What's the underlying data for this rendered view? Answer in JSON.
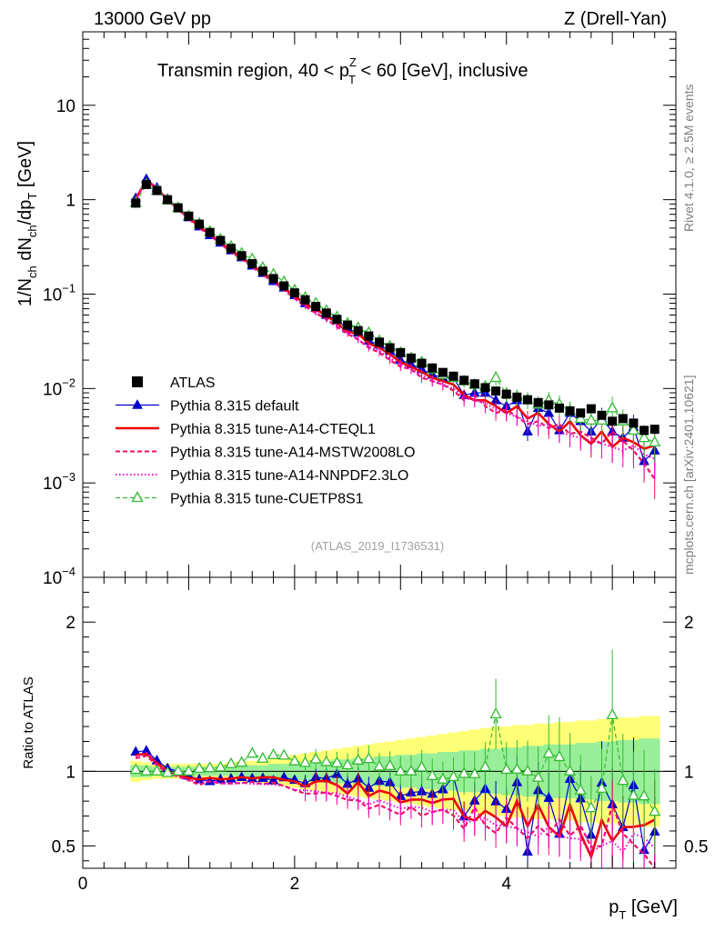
{
  "chart_data": [
    {
      "panel": "main",
      "type": "line",
      "yscale": "log",
      "header_left": "13000 GeV pp",
      "header_right": "Z (Drell-Yan)",
      "title": "Transmin region, 40 < pTZ < 60 [GeV], inclusive",
      "title_parts": {
        "a": "Transmin region, 40 < p",
        "sup": "Z",
        "sub": "T",
        "b": " < 60 [GeV], inclusive"
      },
      "ylabel": "1/Nch dNch/dpT [GeV]",
      "ylabel_parts": {
        "a": "1/N",
        "s1": "ch",
        "b": " dN",
        "s2": "ch",
        "c": "/dp",
        "s3": "T",
        "d": " [GeV]"
      },
      "ylim": [
        0.0001,
        60
      ],
      "yticks": [
        {
          "v": 10,
          "t": "10"
        },
        {
          "v": 1,
          "t": "1"
        },
        {
          "v": 0.1,
          "base": "10",
          "exp": "−1"
        },
        {
          "v": 0.01,
          "base": "10",
          "exp": "−2"
        },
        {
          "v": 0.001,
          "base": "10",
          "exp": "−3"
        },
        {
          "v": 0.0001,
          "base": "10",
          "exp": "−4"
        }
      ],
      "watermark": "(ATLAS_2019_I1736531)",
      "side_top": "Rivet 4.1.0, ≥ 2.5M events",
      "side_bottom": "mcplots.cern.ch [arXiv:2401.10621]",
      "legend": [
        {
          "label": "ATLAS",
          "color": "#000000",
          "style": "square"
        },
        {
          "label": "Pythia 8.315 default",
          "color": "#0000cc",
          "style": "tri-line"
        },
        {
          "label": "Pythia 8.315 tune-A14-CTEQL1",
          "color": "#ee0000",
          "style": "thick"
        },
        {
          "label": "Pythia 8.315 tune-A14-MSTW2008LO",
          "color": "#ee1166",
          "style": "dashed"
        },
        {
          "label": "Pythia 8.315 tune-A14-NNPDF2.3LO",
          "color": "#ee00cc",
          "style": "dotted"
        },
        {
          "label": "Pythia 8.315 tune-CUETP8S1",
          "color": "#33bb33",
          "style": "open-tri-dashed"
        }
      ],
      "atlas_x": [
        0.5,
        0.6,
        0.7,
        0.8,
        0.9,
        1.0,
        1.1,
        1.2,
        1.3,
        1.4,
        1.5,
        1.6,
        1.7,
        1.8,
        1.9,
        2.0,
        2.1,
        2.2,
        2.3,
        2.4,
        2.5,
        2.6,
        2.7,
        2.8,
        2.9,
        3.0,
        3.1,
        3.2,
        3.3,
        3.4,
        3.5,
        3.6,
        3.7,
        3.8,
        3.9,
        4.0,
        4.1,
        4.2,
        4.3,
        4.4,
        4.5,
        4.6,
        4.7,
        4.8,
        4.9,
        5.0,
        5.1,
        5.2,
        5.3,
        5.4
      ],
      "atlas_y": [
        0.92,
        1.45,
        1.25,
        1.0,
        0.82,
        0.67,
        0.55,
        0.45,
        0.37,
        0.305,
        0.255,
        0.21,
        0.175,
        0.146,
        0.122,
        0.103,
        0.087,
        0.074,
        0.063,
        0.054,
        0.047,
        0.041,
        0.036,
        0.031,
        0.027,
        0.024,
        0.021,
        0.0185,
        0.0165,
        0.0148,
        0.0135,
        0.0122,
        0.0112,
        0.0102,
        0.0094,
        0.0087,
        0.0081,
        0.0076,
        0.0071,
        0.0067,
        0.0062,
        0.0058,
        0.0055,
        0.0061,
        0.0052,
        0.0045,
        0.0048,
        0.0043,
        0.0036,
        0.0037
      ],
      "series": [
        {
          "name": "Pythia 8.315 default",
          "values": [
            1.04,
            1.65,
            1.34,
            1.02,
            0.82,
            0.65,
            0.52,
            0.42,
            0.35,
            0.29,
            0.245,
            0.2,
            0.167,
            0.137,
            0.117,
            0.097,
            0.08,
            0.071,
            0.06,
            0.053,
            0.043,
            0.039,
            0.032,
            0.029,
            0.025,
            0.02,
            0.018,
            0.016,
            0.014,
            0.013,
            0.013,
            0.0085,
            0.009,
            0.009,
            0.0075,
            0.0065,
            0.0075,
            0.0035,
            0.0062,
            0.0055,
            0.0036,
            0.0055,
            0.0045,
            0.0035,
            0.0048,
            0.0035,
            0.003,
            0.0039,
            0.0017,
            0.0022
          ]
        },
        {
          "name": "Pythia 8.315 tune-A14-CTEQL1",
          "values": [
            1.02,
            1.62,
            1.32,
            1.0,
            0.8,
            0.64,
            0.52,
            0.43,
            0.35,
            0.29,
            0.245,
            0.2,
            0.168,
            0.14,
            0.115,
            0.096,
            0.078,
            0.069,
            0.059,
            0.049,
            0.04,
            0.038,
            0.03,
            0.027,
            0.023,
            0.019,
            0.017,
            0.015,
            0.013,
            0.012,
            0.011,
            0.0085,
            0.0075,
            0.0075,
            0.0065,
            0.0055,
            0.0065,
            0.0048,
            0.0055,
            0.0042,
            0.0035,
            0.0045,
            0.0032,
            0.0026,
            0.0035,
            0.0024,
            0.003,
            0.0027,
            0.0023,
            0.0025
          ]
        },
        {
          "name": "Pythia 8.315 tune-A14-MSTW2008LO",
          "values": [
            1.0,
            1.6,
            1.3,
            0.99,
            0.79,
            0.63,
            0.5,
            0.42,
            0.34,
            0.28,
            0.235,
            0.195,
            0.16,
            0.135,
            0.11,
            0.09,
            0.074,
            0.063,
            0.054,
            0.045,
            0.038,
            0.033,
            0.027,
            0.024,
            0.02,
            0.017,
            0.016,
            0.013,
            0.012,
            0.011,
            0.0095,
            0.0075,
            0.0085,
            0.0065,
            0.0055,
            0.006,
            0.005,
            0.0042,
            0.0045,
            0.0038,
            0.0042,
            0.0033,
            0.0035,
            0.003,
            0.0026,
            0.0035,
            0.0028,
            0.0022,
            0.0016,
            0.0011
          ]
        },
        {
          "name": "Pythia 8.315 tune-A14-NNPDF2.3LO",
          "values": [
            1.01,
            1.63,
            1.31,
            1.0,
            0.8,
            0.63,
            0.51,
            0.42,
            0.34,
            0.28,
            0.235,
            0.192,
            0.16,
            0.133,
            0.11,
            0.09,
            0.076,
            0.064,
            0.054,
            0.046,
            0.039,
            0.033,
            0.028,
            0.025,
            0.021,
            0.018,
            0.016,
            0.014,
            0.012,
            0.011,
            0.01,
            0.008,
            0.0075,
            0.007,
            0.006,
            0.0055,
            0.005,
            0.0045,
            0.004,
            0.0042,
            0.0035,
            0.0032,
            0.003,
            0.0028,
            0.0026,
            0.0024,
            0.0022,
            0.0025,
            0.002,
            0.0018
          ]
        },
        {
          "name": "Pythia 8.315 tune-CUETP8S1",
          "values": [
            0.93,
            1.45,
            1.25,
            0.99,
            0.82,
            0.67,
            0.56,
            0.46,
            0.38,
            0.32,
            0.27,
            0.235,
            0.19,
            0.162,
            0.135,
            0.11,
            0.092,
            0.08,
            0.067,
            0.057,
            0.049,
            0.044,
            0.039,
            0.032,
            0.028,
            0.024,
            0.021,
            0.019,
            0.016,
            0.014,
            0.013,
            0.012,
            0.011,
            0.0105,
            0.013,
            0.0088,
            0.0082,
            0.0076,
            0.0068,
            0.0075,
            0.0068,
            0.0058,
            0.0048,
            0.0046,
            0.0046,
            0.0062,
            0.0045,
            0.0036,
            0.003,
            0.0027
          ]
        }
      ]
    },
    {
      "panel": "ratio",
      "type": "line",
      "ylabel": "Ratio to ATLAS",
      "xlabel": "pT [GeV]",
      "xlabel_parts": {
        "a": "p",
        "s": "T",
        "b": " [GeV]"
      },
      "xlim": [
        0,
        5.6
      ],
      "ylim": [
        0.35,
        2.3
      ],
      "xticks": [
        {
          "v": 0,
          "t": "0"
        },
        {
          "v": 2,
          "t": "2"
        },
        {
          "v": 4,
          "t": "4"
        }
      ],
      "yticks": [
        {
          "v": 0.5,
          "t": "0.5"
        },
        {
          "v": 1,
          "t": "1"
        },
        {
          "v": 2,
          "t": "2"
        }
      ],
      "band_inner": [
        0.96,
        0.96,
        0.97,
        0.97,
        0.97,
        0.97,
        0.97,
        0.97,
        0.97,
        0.97,
        0.96,
        0.96,
        0.96,
        0.95,
        0.95,
        0.94,
        0.94,
        0.93,
        0.93,
        0.92,
        0.92,
        0.91,
        0.91,
        0.9,
        0.9,
        0.89,
        0.89,
        0.88,
        0.88,
        0.87,
        0.87,
        0.86,
        0.86,
        0.85,
        0.85,
        0.84,
        0.84,
        0.83,
        0.83,
        0.82,
        0.82,
        0.82,
        0.81,
        0.81,
        0.8,
        0.8,
        0.79,
        0.79,
        0.78,
        0.78
      ],
      "band_outer": [
        0.93,
        0.94,
        0.95,
        0.95,
        0.95,
        0.95,
        0.95,
        0.95,
        0.95,
        0.94,
        0.93,
        0.93,
        0.92,
        0.91,
        0.9,
        0.89,
        0.88,
        0.87,
        0.86,
        0.85,
        0.84,
        0.83,
        0.82,
        0.81,
        0.8,
        0.79,
        0.78,
        0.77,
        0.76,
        0.75,
        0.74,
        0.73,
        0.72,
        0.71,
        0.7,
        0.7,
        0.69,
        0.69,
        0.68,
        0.68,
        0.67,
        0.67,
        0.66,
        0.66,
        0.65,
        0.65,
        0.64,
        0.64,
        0.63,
        0.63
      ]
    }
  ]
}
